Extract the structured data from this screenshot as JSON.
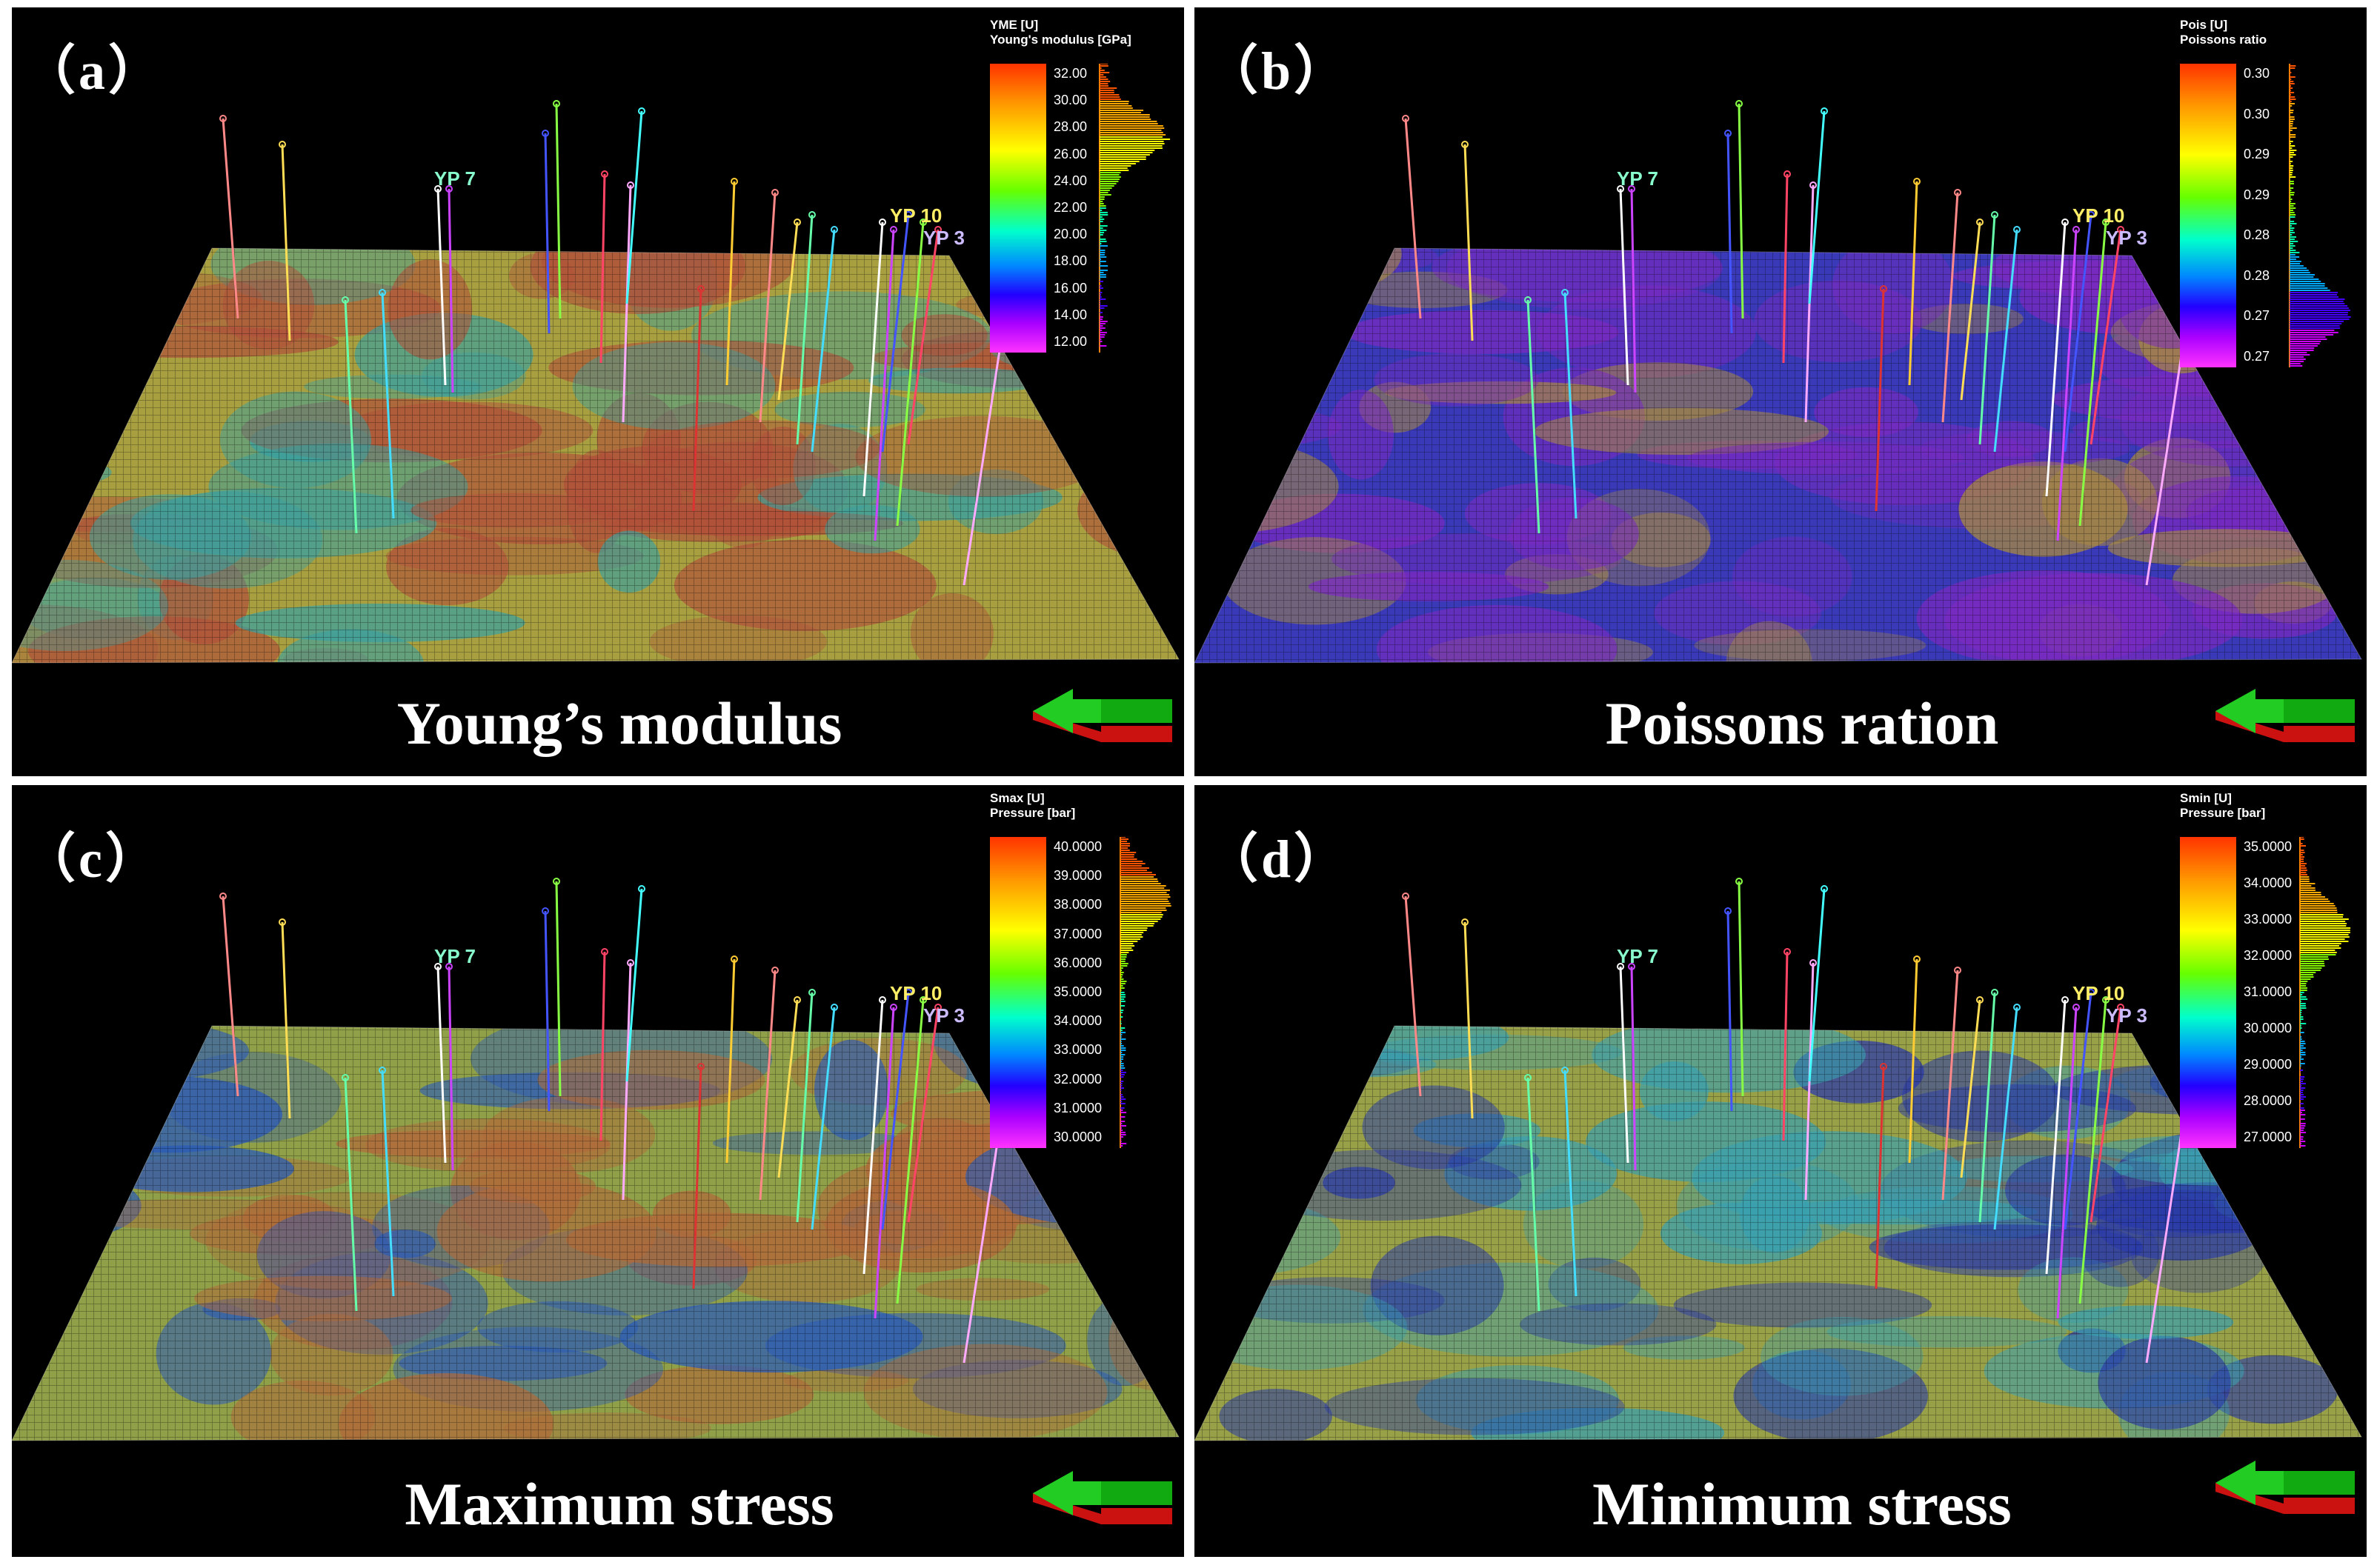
{
  "panels": [
    {
      "letter": "（a）",
      "caption": "Young’s modulus",
      "legend": {
        "title1": "YME [U]",
        "title2": "Young's modulus [GPa]",
        "ticks": [
          "32.00",
          "30.00",
          "28.00",
          "26.00",
          "24.00",
          "22.00",
          "20.00",
          "18.00",
          "16.00",
          "14.00",
          "12.00"
        ]
      },
      "colors": {
        "base": "#a8a040",
        "patch_a": "#b0503a",
        "patch_b": "#3aa0a0"
      }
    },
    {
      "letter": "（b）",
      "caption": "Poissons ration",
      "legend": {
        "title1": "Pois [U]",
        "title2": "Poissons ratio",
        "ticks": [
          "0.30",
          "0.30",
          "0.29",
          "0.29",
          "0.28",
          "0.28",
          "0.27",
          "0.27"
        ]
      },
      "colors": {
        "base": "#3a3ab8",
        "patch_a": "#7a2ac0",
        "patch_b": "#a88a40"
      }
    },
    {
      "letter": "（c）",
      "caption": "Maximum stress",
      "legend": {
        "title1": "Smax [U]",
        "title2": "Pressure [bar]",
        "ticks": [
          "40.0000",
          "39.0000",
          "38.0000",
          "37.0000",
          "36.0000",
          "35.0000",
          "34.0000",
          "33.0000",
          "32.0000",
          "31.0000",
          "30.0000"
        ]
      },
      "colors": {
        "base": "#90a048",
        "patch_a": "#b06a3a",
        "patch_b": "#2a5ab8"
      }
    },
    {
      "letter": "（d）",
      "caption": "Minimum stress",
      "legend": {
        "title1": "Smin [U]",
        "title2": "Pressure [bar]",
        "ticks": [
          "35.0000",
          "34.0000",
          "33.0000",
          "32.0000",
          "31.0000",
          "30.0000",
          "29.0000",
          "28.0000",
          "27.0000"
        ]
      },
      "colors": {
        "base": "#98a048",
        "patch_a": "#2a3aa8",
        "patch_b": "#3aa0b0"
      }
    }
  ],
  "well_labels": [
    "YP 7",
    "YP 10",
    "YP 3"
  ]
}
